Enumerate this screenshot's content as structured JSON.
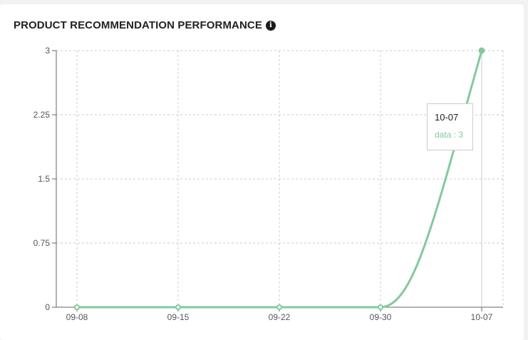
{
  "header": {
    "title": "PRODUCT RECOMMENDATION PERFORMANCE",
    "info_icon": "info-icon"
  },
  "colors": {
    "line": "#82ca9d",
    "grid": "#cccccc",
    "axis": "#666666"
  },
  "chart_data": {
    "type": "line",
    "title": "PRODUCT RECOMMENDATION PERFORMANCE",
    "categories": [
      "09-08",
      "09-15",
      "09-22",
      "09-30",
      "10-07"
    ],
    "series": [
      {
        "name": "data",
        "values": [
          0,
          0,
          0,
          0,
          3
        ]
      }
    ],
    "ylim": [
      0,
      3
    ],
    "yticks": [
      "0",
      "0.75",
      "1.5",
      "2.25",
      "3"
    ],
    "grid": true,
    "legend": "none"
  },
  "tooltip": {
    "label": "10-07",
    "value_text": "data : 3"
  }
}
